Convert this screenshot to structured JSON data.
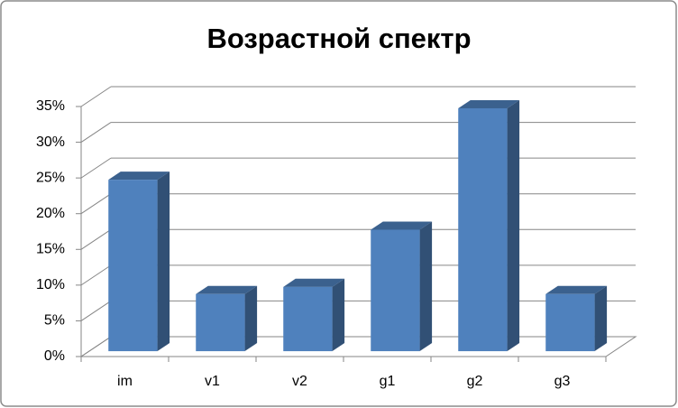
{
  "chart_data": {
    "type": "bar3d",
    "title": "Возрастной спектр",
    "categories": [
      "im",
      "v1",
      "v2",
      "g1",
      "g2",
      "g3"
    ],
    "values": [
      24,
      8,
      9,
      17,
      34,
      8
    ],
    "color": "#4f81bd",
    "ylim": [
      0,
      35
    ],
    "yticks": [
      {
        "value": 0,
        "label": "0%"
      },
      {
        "value": 5,
        "label": "5%"
      },
      {
        "value": 10,
        "label": "10%"
      },
      {
        "value": 15,
        "label": "15%"
      },
      {
        "value": 20,
        "label": "20%"
      },
      {
        "value": 25,
        "label": "25%"
      },
      {
        "value": 30,
        "label": "30%"
      },
      {
        "value": 35,
        "label": "35%"
      }
    ],
    "grid": true
  }
}
